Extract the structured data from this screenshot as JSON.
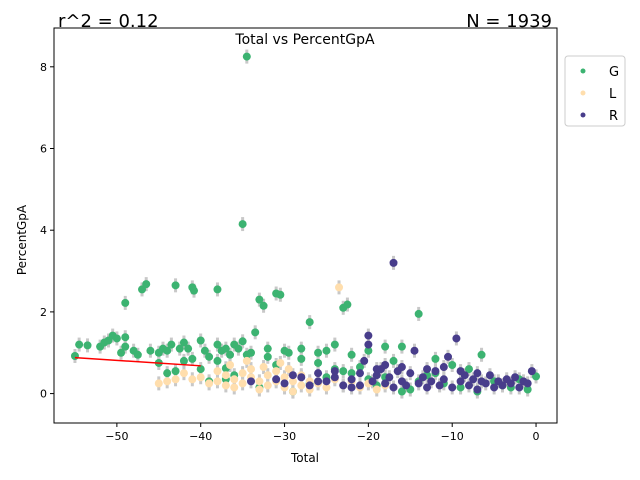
{
  "chart_data": {
    "type": "scatter",
    "title": "Total vs PercentGpA",
    "xlabel": "Total",
    "ylabel": "PercentGpA",
    "xlim": [
      -57.5,
      2.5
    ],
    "ylim": [
      -0.72,
      8.95
    ],
    "x_ticks": [
      -50,
      -40,
      -30,
      -20,
      -10,
      0
    ],
    "y_ticks": [
      0,
      2,
      4,
      6,
      8
    ],
    "annotations": {
      "r_squared": "r^2 = 0.12",
      "n": "N = 1939"
    },
    "legend": {
      "placement": "outside-top-right",
      "entries": [
        "G",
        "L",
        "R"
      ]
    },
    "colors": {
      "G": "#3cb371",
      "L": "#ffdead",
      "R": "#483d8b",
      "fit": "#ff0000",
      "error": "#c8c8c8"
    },
    "fit_line": {
      "x": [
        -55,
        -40
      ],
      "y": [
        0.88,
        0.68
      ]
    },
    "series": [
      {
        "name": "G",
        "points": [
          [
            -55,
            0.92
          ],
          [
            -54.5,
            1.2
          ],
          [
            -53.5,
            1.18
          ],
          [
            -52,
            1.15
          ],
          [
            -51.5,
            1.25
          ],
          [
            -51,
            1.3
          ],
          [
            -50.5,
            1.42
          ],
          [
            -50,
            1.35
          ],
          [
            -49.5,
            1.0
          ],
          [
            -49,
            1.15
          ],
          [
            -49,
            1.38
          ],
          [
            -49,
            2.22
          ],
          [
            -48,
            1.05
          ],
          [
            -47.5,
            0.95
          ],
          [
            -47,
            2.55
          ],
          [
            -46.5,
            2.68
          ],
          [
            -46,
            1.05
          ],
          [
            -45,
            1.0
          ],
          [
            -44.5,
            1.1
          ],
          [
            -44,
            1.05
          ],
          [
            -43.5,
            1.2
          ],
          [
            -43,
            2.65
          ],
          [
            -42.5,
            1.1
          ],
          [
            -42,
            1.25
          ],
          [
            -41.5,
            1.1
          ],
          [
            -41,
            2.6
          ],
          [
            -41,
            0.85
          ],
          [
            -40.8,
            2.52
          ],
          [
            -40,
            1.3
          ],
          [
            -39.5,
            1.05
          ],
          [
            -39,
            0.9
          ],
          [
            -38,
            1.2
          ],
          [
            -38,
            2.55
          ],
          [
            -37.5,
            1.05
          ],
          [
            -37,
            1.1
          ],
          [
            -36.5,
            0.95
          ],
          [
            -36,
            1.2
          ],
          [
            -35.5,
            1.1
          ],
          [
            -35,
            1.28
          ],
          [
            -35,
            4.15
          ],
          [
            -34.5,
            8.25
          ],
          [
            -34,
            1.0
          ],
          [
            -33.5,
            1.5
          ],
          [
            -33,
            2.3
          ],
          [
            -32.5,
            2.15
          ],
          [
            -32,
            1.1
          ],
          [
            -31,
            2.45
          ],
          [
            -30.5,
            2.42
          ],
          [
            -30,
            1.05
          ],
          [
            -29.5,
            1.0
          ],
          [
            -28,
            1.1
          ],
          [
            -27,
            1.75
          ],
          [
            -26,
            1.0
          ],
          [
            -25,
            1.05
          ],
          [
            -24,
            1.2
          ],
          [
            -23,
            2.1
          ],
          [
            -22.5,
            2.18
          ],
          [
            -22,
            0.95
          ],
          [
            -20,
            1.05
          ],
          [
            -18,
            1.15
          ],
          [
            -16,
            1.15
          ],
          [
            -14,
            1.95
          ],
          [
            -12,
            0.85
          ],
          [
            -10,
            0.7
          ],
          [
            -8,
            0.6
          ],
          [
            -6.5,
            0.95
          ],
          [
            -4,
            0.2
          ],
          [
            0,
            0.42
          ],
          [
            -45,
            0.75
          ],
          [
            -44,
            0.5
          ],
          [
            -43,
            0.55
          ],
          [
            -42,
            0.8
          ],
          [
            -40,
            0.6
          ],
          [
            -39,
            0.3
          ],
          [
            -38,
            0.8
          ],
          [
            -37,
            0.62
          ],
          [
            -36,
            0.45
          ],
          [
            -33,
            0.15
          ],
          [
            -31,
            0.7
          ],
          [
            -29,
            0.05
          ],
          [
            -27,
            0.25
          ],
          [
            -25,
            0.4
          ],
          [
            -23,
            0.55
          ],
          [
            -21,
            0.65
          ],
          [
            -19,
            0.2
          ],
          [
            -17,
            0.8
          ],
          [
            -15,
            0.1
          ],
          [
            -13,
            0.45
          ],
          [
            -11,
            0.25
          ],
          [
            -9,
            0.15
          ],
          [
            -7,
            0.05
          ],
          [
            -5,
            0.3
          ],
          [
            -3,
            0.15
          ],
          [
            -2,
            0.35
          ],
          [
            -1,
            0.1
          ],
          [
            -37,
            0.35
          ],
          [
            -34.5,
            0.95
          ],
          [
            -32,
            0.9
          ],
          [
            -28,
            0.85
          ],
          [
            -26,
            0.75
          ],
          [
            -24,
            0.6
          ],
          [
            -22,
            0.5
          ],
          [
            -20,
            0.35
          ],
          [
            -18,
            0.4
          ],
          [
            -16,
            0.05
          ],
          [
            -14,
            0.3
          ],
          [
            -12,
            0.5
          ]
        ]
      },
      {
        "name": "L",
        "points": [
          [
            -45,
            0.25
          ],
          [
            -44,
            0.3
          ],
          [
            -43,
            0.35
          ],
          [
            -42,
            0.5
          ],
          [
            -41,
            0.35
          ],
          [
            -40,
            0.4
          ],
          [
            -39,
            0.25
          ],
          [
            -38,
            0.3
          ],
          [
            -38,
            0.55
          ],
          [
            -37,
            0.45
          ],
          [
            -37,
            0.2
          ],
          [
            -36,
            0.35
          ],
          [
            -36,
            0.15
          ],
          [
            -35,
            0.25
          ],
          [
            -35,
            0.5
          ],
          [
            -34,
            0.4
          ],
          [
            -34,
            0.6
          ],
          [
            -33,
            0.3
          ],
          [
            -33,
            0.1
          ],
          [
            -32,
            0.2
          ],
          [
            -32,
            0.45
          ],
          [
            -31,
            0.55
          ],
          [
            -31,
            0.3
          ],
          [
            -30,
            0.15
          ],
          [
            -30,
            0.4
          ],
          [
            -29,
            0.05
          ],
          [
            -29,
            0.3
          ],
          [
            -28,
            0.2
          ],
          [
            -28,
            0.45
          ],
          [
            -27,
            0.3
          ],
          [
            -27,
            0.1
          ],
          [
            -26,
            0.25
          ],
          [
            -25,
            0.15
          ],
          [
            -24,
            0.35
          ],
          [
            -23.5,
            2.6
          ],
          [
            -23,
            0.2
          ],
          [
            -22,
            0.3
          ],
          [
            -21,
            0.15
          ],
          [
            -20,
            0.25
          ],
          [
            -19,
            0.1
          ],
          [
            -18,
            0.2
          ],
          [
            -36.5,
            0.7
          ],
          [
            -34.5,
            0.8
          ],
          [
            -32.5,
            0.65
          ],
          [
            -30.5,
            0.75
          ],
          [
            -29.5,
            0.6
          ]
        ]
      },
      {
        "name": "R",
        "points": [
          [
            -34,
            0.3
          ],
          [
            -31,
            0.35
          ],
          [
            -30,
            0.25
          ],
          [
            -29,
            0.45
          ],
          [
            -28,
            0.4
          ],
          [
            -27,
            0.2
          ],
          [
            -26,
            0.5
          ],
          [
            -25,
            0.3
          ],
          [
            -24,
            0.4
          ],
          [
            -23,
            0.2
          ],
          [
            -22,
            0.35
          ],
          [
            -21,
            0.5
          ],
          [
            -21,
            0.2
          ],
          [
            -20.5,
            0.8
          ],
          [
            -20,
            1.2
          ],
          [
            -20,
            1.42
          ],
          [
            -19.5,
            0.3
          ],
          [
            -19,
            0.45
          ],
          [
            -18.5,
            0.6
          ],
          [
            -18,
            0.25
          ],
          [
            -17.5,
            0.4
          ],
          [
            -17,
            0.15
          ],
          [
            -17,
            3.2
          ],
          [
            -16.5,
            0.55
          ],
          [
            -16,
            0.3
          ],
          [
            -15.5,
            0.2
          ],
          [
            -15,
            0.5
          ],
          [
            -14.5,
            1.05
          ],
          [
            -14,
            0.25
          ],
          [
            -13.5,
            0.4
          ],
          [
            -13,
            0.15
          ],
          [
            -12.5,
            0.3
          ],
          [
            -12,
            0.55
          ],
          [
            -11.5,
            0.2
          ],
          [
            -11,
            0.35
          ],
          [
            -10.5,
            0.9
          ],
          [
            -10,
            0.15
          ],
          [
            -9.5,
            1.35
          ],
          [
            -9,
            0.3
          ],
          [
            -8.5,
            0.45
          ],
          [
            -8,
            0.2
          ],
          [
            -7.5,
            0.35
          ],
          [
            -7,
            0.1
          ],
          [
            -6.5,
            0.3
          ],
          [
            -6,
            0.25
          ],
          [
            -5.5,
            0.45
          ],
          [
            -5,
            0.15
          ],
          [
            -4.5,
            0.3
          ],
          [
            -4,
            0.2
          ],
          [
            -3.5,
            0.35
          ],
          [
            -3,
            0.25
          ],
          [
            -2.5,
            0.4
          ],
          [
            -2,
            0.15
          ],
          [
            -1.5,
            0.3
          ],
          [
            -1,
            0.25
          ],
          [
            -0.5,
            0.55
          ],
          [
            -22,
            0.15
          ],
          [
            -19,
            0.6
          ],
          [
            -18,
            0.7
          ],
          [
            -16,
            0.65
          ],
          [
            -13,
            0.6
          ],
          [
            -11,
            0.65
          ],
          [
            -9,
            0.55
          ],
          [
            -7,
            0.5
          ],
          [
            -24,
            0.55
          ],
          [
            -26,
            0.3
          ]
        ]
      }
    ]
  }
}
